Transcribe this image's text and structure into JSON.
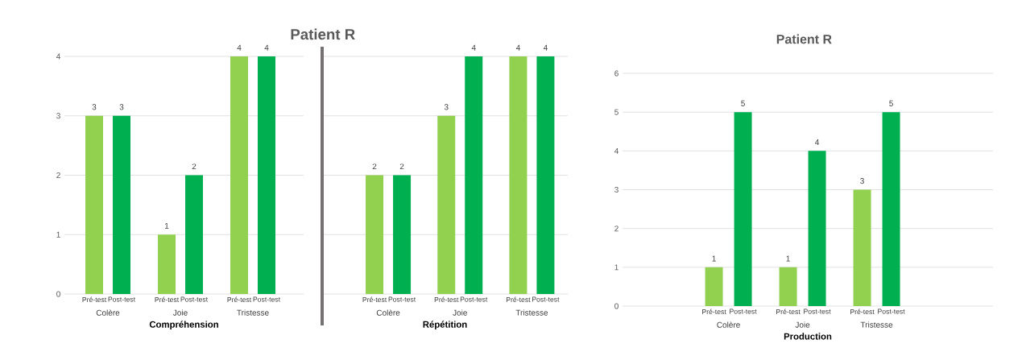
{
  "chart_data": [
    {
      "type": "bar",
      "title": "Patient R",
      "xlabel": "Compréhension",
      "categories": [
        "Colère",
        "Joie",
        "Tristesse"
      ],
      "series": [
        {
          "name": "Pré-test",
          "color": "#92d050",
          "values": [
            3,
            1,
            4
          ]
        },
        {
          "name": "Post-test",
          "color": "#00b050",
          "values": [
            3,
            2,
            4
          ]
        }
      ],
      "ylim": [
        0,
        4
      ],
      "yticks": [
        0,
        1,
        2,
        3,
        4
      ],
      "grid": "y",
      "data_labels": true
    },
    {
      "type": "bar",
      "xlabel": "Répétition",
      "categories": [
        "Colère",
        "Joie",
        "Tristesse"
      ],
      "series": [
        {
          "name": "Pré-test",
          "color": "#92d050",
          "values": [
            2,
            3,
            4
          ]
        },
        {
          "name": "Post-test",
          "color": "#00b050",
          "values": [
            2,
            4,
            4
          ]
        }
      ],
      "ylim": [
        0,
        4
      ],
      "yticks": [
        0,
        1,
        2,
        3,
        4
      ],
      "grid": "y",
      "data_labels": true,
      "tick_labels": "x"
    },
    {
      "type": "bar",
      "title": "Patient R",
      "xlabel": "Production",
      "categories": [
        "Colère",
        "Joie",
        "Tristesse"
      ],
      "series": [
        {
          "name": "Pré-test",
          "color": "#92d050",
          "values": [
            1,
            1,
            3
          ]
        },
        {
          "name": "Post-test",
          "color": "#00b050",
          "values": [
            5,
            4,
            5
          ]
        }
      ],
      "ylim": [
        0,
        6
      ],
      "yticks": [
        0,
        1,
        2,
        3,
        4,
        5,
        6
      ],
      "grid": "y",
      "data_labels": true
    }
  ]
}
